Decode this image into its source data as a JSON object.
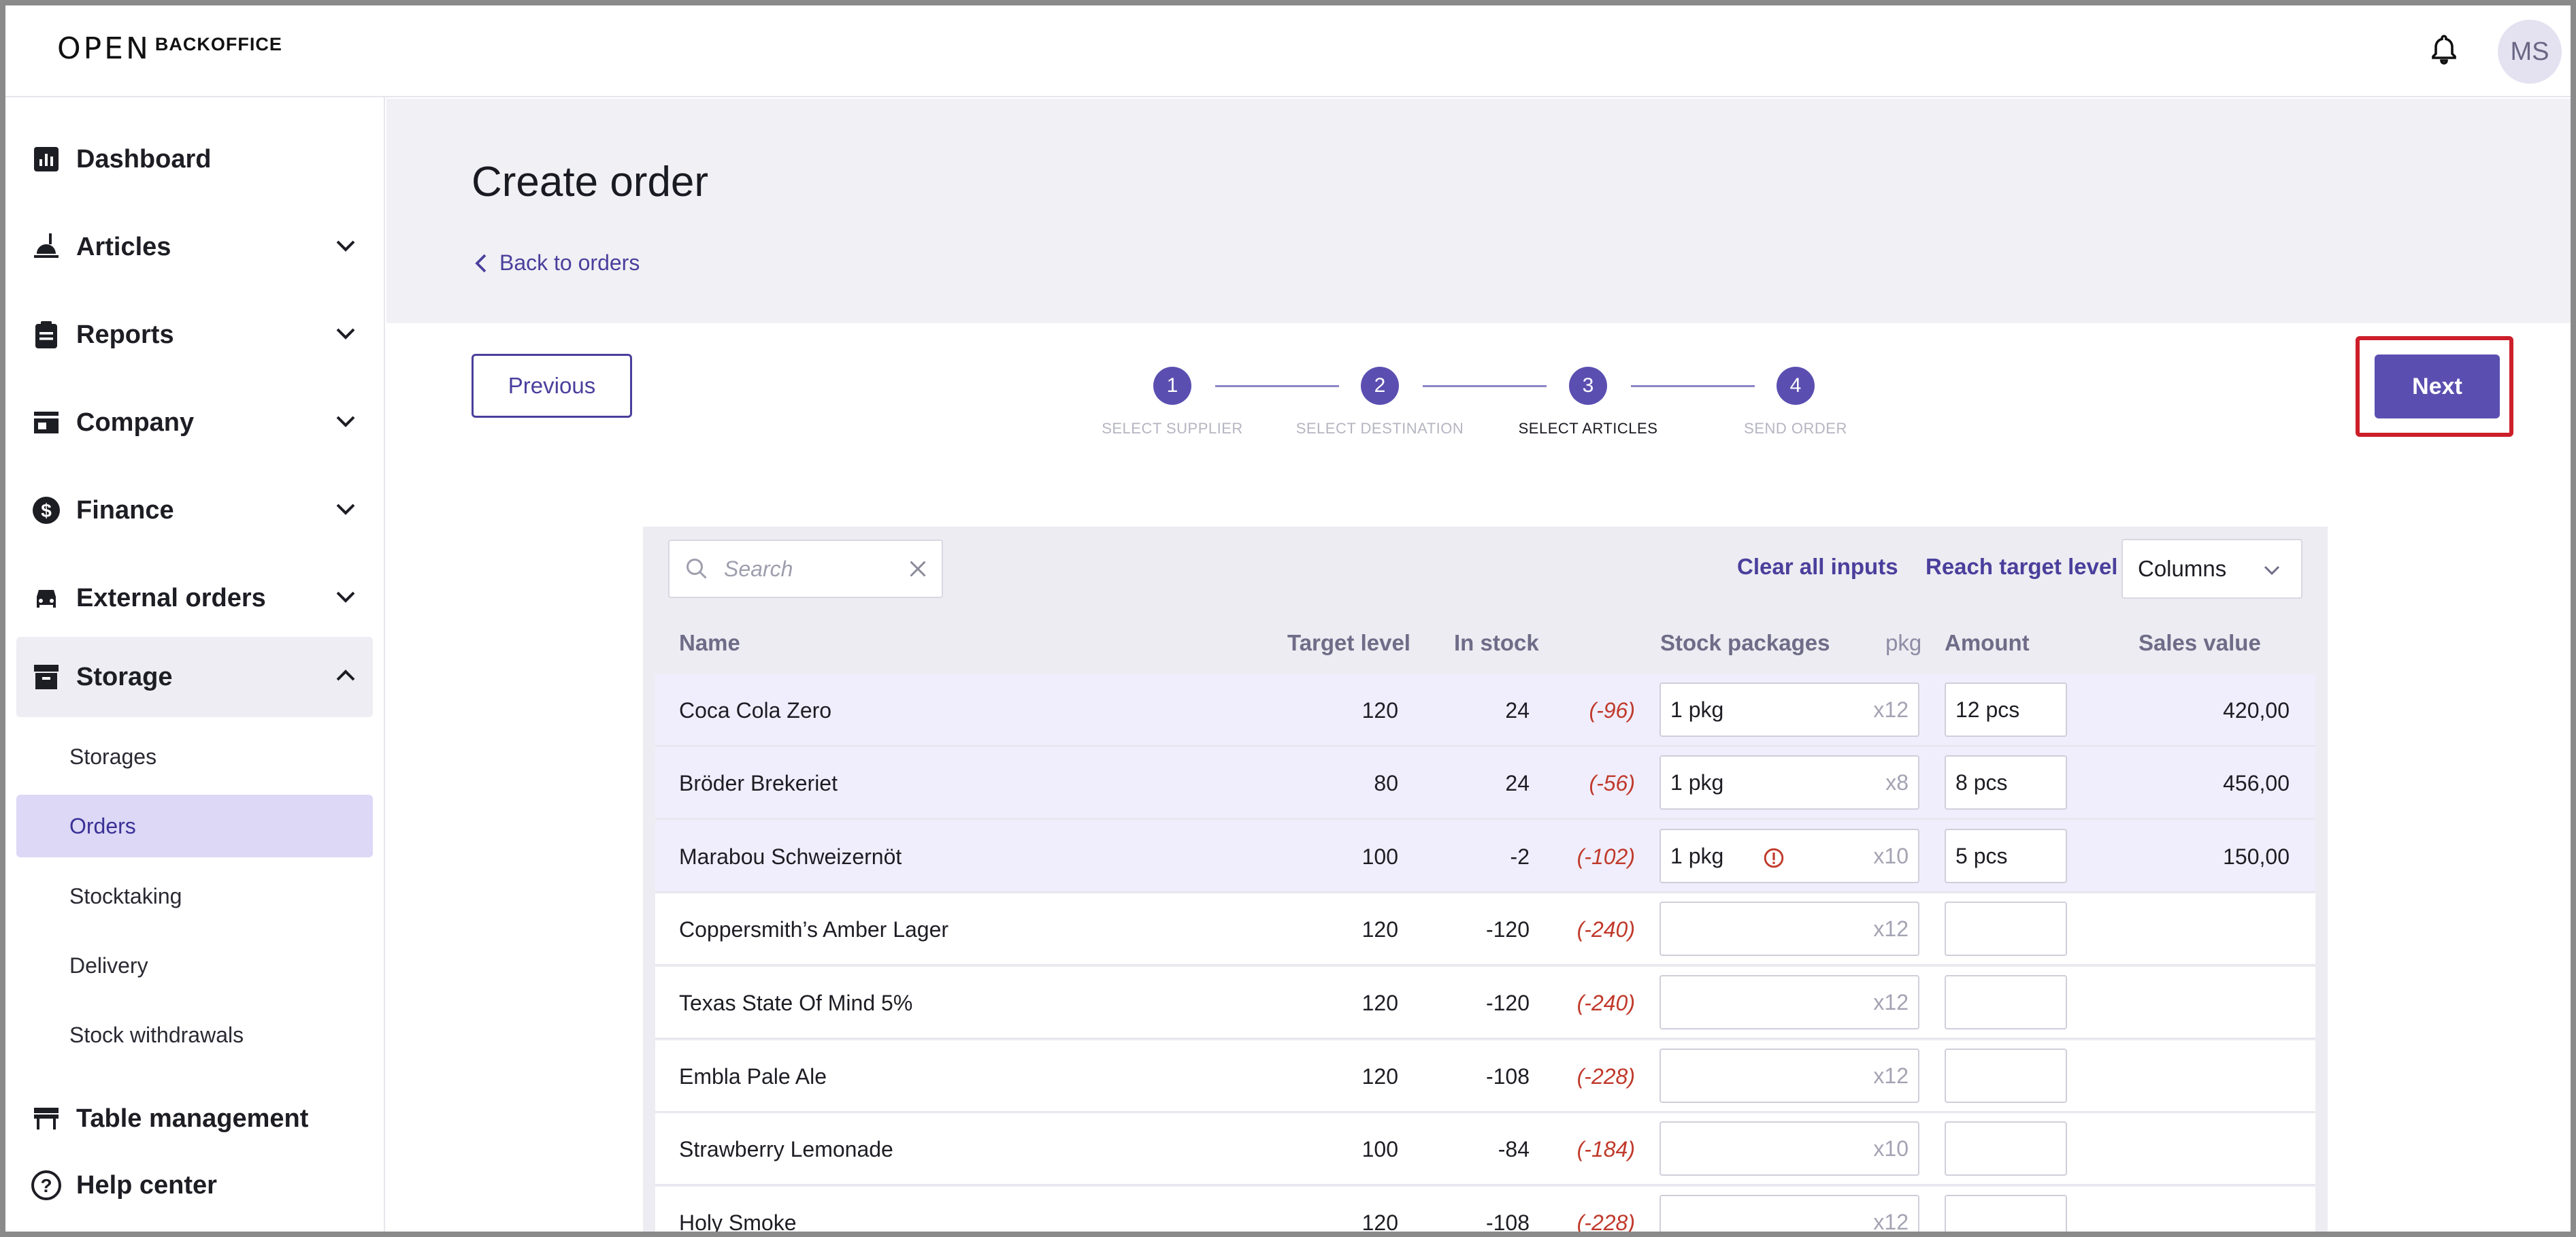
{
  "header": {
    "logo_mark": "OPEN",
    "logo_text": "BACKOFFICE",
    "bell_icon": "bell-icon",
    "avatar_initials": "MS"
  },
  "sidebar": {
    "items": [
      {
        "label": "Dashboard",
        "icon": "bar-chart-icon",
        "expandable": false
      },
      {
        "label": "Articles",
        "icon": "food-icon",
        "expandable": true
      },
      {
        "label": "Reports",
        "icon": "clipboard-icon",
        "expandable": true
      },
      {
        "label": "Company",
        "icon": "store-icon",
        "expandable": true
      },
      {
        "label": "Finance",
        "icon": "dollar-icon",
        "expandable": true
      },
      {
        "label": "External orders",
        "icon": "car-icon",
        "expandable": true
      },
      {
        "label": "Storage",
        "icon": "archive-icon",
        "expandable": true,
        "open": true
      },
      {
        "label": "Table management",
        "icon": "table-icon",
        "expandable": false
      },
      {
        "label": "Help center",
        "icon": "help-icon",
        "expandable": false
      }
    ],
    "storage_sub": [
      "Storages",
      "Orders",
      "Stocktaking",
      "Delivery",
      "Stock withdrawals"
    ],
    "active_sub": "Orders"
  },
  "page": {
    "title": "Create order",
    "back_label": "Back to orders"
  },
  "actions": {
    "previous_label": "Previous",
    "next_label": "Next"
  },
  "stepper": {
    "steps": [
      {
        "number": "1",
        "label": "SELECT SUPPLIER"
      },
      {
        "number": "2",
        "label": "SELECT DESTINATION"
      },
      {
        "number": "3",
        "label": "SELECT ARTICLES"
      },
      {
        "number": "4",
        "label": "SEND ORDER"
      }
    ],
    "current": 3
  },
  "toolbar": {
    "search_placeholder": "Search",
    "clear_all_label": "Clear all inputs",
    "reach_target_label": "Reach target level",
    "columns_label": "Columns"
  },
  "table": {
    "headers": {
      "name": "Name",
      "target": "Target level",
      "in_stock": "In stock",
      "stock_packages": "Stock packages",
      "pkg": "pkg",
      "amount": "Amount",
      "sales_value": "Sales value"
    },
    "rows": [
      {
        "name": "Coca Cola Zero",
        "target": "120",
        "stock": "24",
        "diff": "(-96)",
        "pkg": "1 pkg",
        "mult": "x12",
        "amount": "12 pcs",
        "sales": "420,00",
        "warn": false
      },
      {
        "name": "Bröder Brekeriet",
        "target": "80",
        "stock": "24",
        "diff": "(-56)",
        "pkg": "1 pkg",
        "mult": "x8",
        "amount": "8 pcs",
        "sales": "456,00",
        "warn": false
      },
      {
        "name": "Marabou Schweizernöt",
        "target": "100",
        "stock": "-2",
        "diff": "(-102)",
        "pkg": "1 pkg",
        "mult": "x10",
        "amount": "5 pcs",
        "sales": "150,00",
        "warn": true
      },
      {
        "name": "Coppersmith’s Amber Lager",
        "target": "120",
        "stock": "-120",
        "diff": "(-240)",
        "pkg": "",
        "mult": "x12",
        "amount": "",
        "sales": "",
        "warn": false
      },
      {
        "name": "Texas State Of Mind 5%",
        "target": "120",
        "stock": "-120",
        "diff": "(-240)",
        "pkg": "",
        "mult": "x12",
        "amount": "",
        "sales": "",
        "warn": false
      },
      {
        "name": "Embla Pale Ale",
        "target": "120",
        "stock": "-108",
        "diff": "(-228)",
        "pkg": "",
        "mult": "x12",
        "amount": "",
        "sales": "",
        "warn": false
      },
      {
        "name": "Strawberry Lemonade",
        "target": "100",
        "stock": "-84",
        "diff": "(-184)",
        "pkg": "",
        "mult": "x10",
        "amount": "",
        "sales": "",
        "warn": false
      },
      {
        "name": "Holy Smoke",
        "target": "120",
        "stock": "-108",
        "diff": "(-228)",
        "pkg": "",
        "mult": "x12",
        "amount": "",
        "sales": "",
        "warn": false
      }
    ]
  },
  "colors": {
    "accent": "#5a4fb0",
    "link": "#4a3f9c",
    "negative": "#c0392b",
    "highlight_border": "#cc1f2a"
  }
}
